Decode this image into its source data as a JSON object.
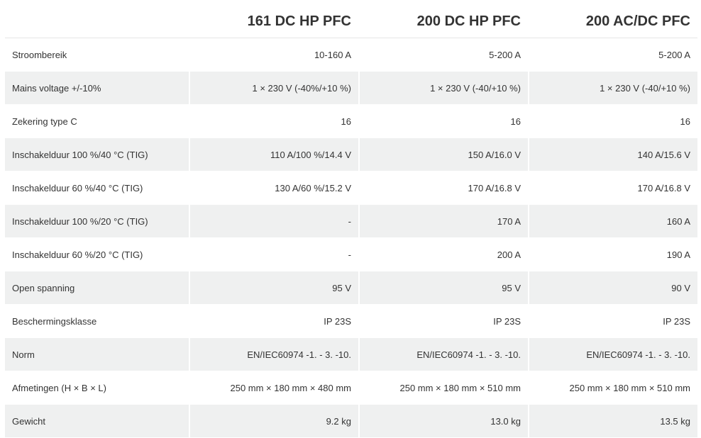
{
  "columns": [
    "",
    "161 DC HP PFC",
    "200 DC HP PFC",
    "200 AC/DC PFC"
  ],
  "rows": [
    {
      "label": "Stroombereik",
      "values": [
        "10-160 A",
        "5-200 A",
        "5-200 A"
      ]
    },
    {
      "label": "Mains voltage +/-10%",
      "values": [
        "1 × 230 V (-40%/+10 %)",
        "1 × 230 V (-40/+10 %)",
        "1 × 230 V (-40/+10 %)"
      ]
    },
    {
      "label": "Zekering type C",
      "values": [
        "16",
        "16",
        "16"
      ]
    },
    {
      "label": "Inschakelduur 100 %/40 °C (TIG)",
      "values": [
        "110 A/100 %/14.4 V",
        "150 A/16.0 V",
        "140 A/15.6 V"
      ]
    },
    {
      "label": "Inschakelduur 60 %/40 °C (TIG)",
      "values": [
        "130 A/60 %/15.2 V",
        "170 A/16.8 V",
        "170 A/16.8 V"
      ]
    },
    {
      "label": "Inschakelduur 100 %/20 °C (TIG)",
      "values": [
        "-",
        "170 A",
        "160 A"
      ]
    },
    {
      "label": "Inschakelduur 60 %/20 °C (TIG)",
      "values": [
        "-",
        "200 A",
        "190 A"
      ]
    },
    {
      "label": "Open spanning",
      "values": [
        "95 V",
        "95 V",
        "90 V"
      ]
    },
    {
      "label": "Beschermingsklasse",
      "values": [
        "IP 23S",
        "IP 23S",
        "IP 23S"
      ]
    },
    {
      "label": "Norm",
      "values": [
        "EN/IEC60974 -1. - 3. -10.",
        "EN/IEC60974 -1. - 3. -10.",
        "EN/IEC60974 -1. - 3. -10."
      ]
    },
    {
      "label": "Afmetingen (H × B × L)",
      "values": [
        "250 mm × 180 mm × 480 mm",
        "250 mm × 180 mm × 510 mm",
        "250 mm × 180 mm × 510 mm"
      ]
    },
    {
      "label": "Gewicht",
      "values": [
        "9.2 kg",
        "13.0 kg",
        "13.5 kg"
      ]
    }
  ]
}
